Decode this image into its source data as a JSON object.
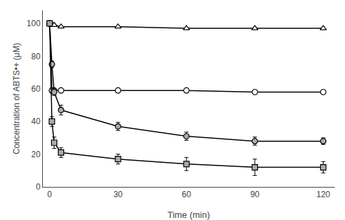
{
  "chart_data": {
    "type": "line",
    "xlabel": "Time (min)",
    "ylabel": "Concentration of ABTS•+ (μM)",
    "x": [
      0,
      1,
      2,
      5,
      30,
      60,
      90,
      120
    ],
    "color": "#000000",
    "series": [
      {
        "color": "#ffffff",
        "marker": "triangle-up",
        "values": [
          100,
          99,
          99,
          98,
          98,
          97,
          97,
          97
        ],
        "errors": [
          0,
          0,
          0,
          0,
          0,
          0,
          0,
          0
        ]
      },
      {
        "color": "#ffffff",
        "marker": "circle",
        "values": [
          100,
          59,
          59,
          59,
          59,
          59,
          58,
          58
        ],
        "errors": [
          0,
          1.5,
          1.0,
          1.0,
          1.0,
          1.0,
          1.0,
          1.0
        ]
      },
      {
        "color": "#aaaaaa",
        "marker": "circle",
        "values": [
          100,
          75,
          58,
          47,
          37,
          31,
          28,
          28
        ],
        "errors": [
          0,
          2.0,
          2.0,
          3.0,
          2.5,
          2.5,
          2.5,
          2.0
        ]
      },
      {
        "color": "#aaaaaa",
        "marker": "square",
        "values": [
          100,
          40,
          27,
          21,
          17,
          14,
          12,
          12
        ],
        "errors": [
          0,
          3.0,
          3.5,
          3.0,
          3.0,
          4.0,
          5.0,
          3.5
        ]
      }
    ],
    "xlim": [
      -3,
      125
    ],
    "ylim": [
      0,
      108
    ],
    "xticks": [
      0,
      30,
      60,
      90,
      120
    ],
    "yticks": [
      0,
      20,
      40,
      60,
      80,
      100
    ],
    "grid": false
  }
}
